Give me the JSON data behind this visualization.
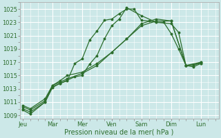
{
  "xlabel": "Pression niveau de la mer( hPa )",
  "background_color": "#cce8e8",
  "grid_color": "#ffffff",
  "line_color": "#2d6e2d",
  "ylim": [
    1008.5,
    1026.0
  ],
  "yticks": [
    1009,
    1011,
    1013,
    1015,
    1017,
    1019,
    1021,
    1023,
    1025
  ],
  "days": [
    "Jeu",
    "Mar",
    "Mer",
    "Ven",
    "Sam",
    "Dim",
    "Lun"
  ],
  "day_positions": [
    0,
    2,
    4,
    6,
    8,
    10,
    12
  ],
  "xlim": [
    -0.2,
    13.2
  ],
  "lines": [
    {
      "x": [
        0,
        0.5,
        1.5,
        2,
        2.5,
        3,
        3.5,
        4,
        4.5,
        5,
        5.5,
        6,
        6.5,
        7,
        7.5,
        8,
        8.5,
        9,
        9.5,
        10,
        10.5,
        11,
        11.5,
        12
      ],
      "y": [
        1009.8,
        1009.2,
        1011.0,
        1013.2,
        1013.8,
        1014.2,
        1016.8,
        1017.5,
        1020.3,
        1021.7,
        1023.3,
        1023.5,
        1024.3,
        1025.0,
        1025.0,
        1023.3,
        1023.2,
        1023.0,
        1023.0,
        1021.3,
        1019.0,
        1016.5,
        1016.5,
        1017.0
      ]
    },
    {
      "x": [
        0,
        0.5,
        1.5,
        2,
        2.5,
        3,
        3.5,
        4,
        4.5,
        5,
        5.5,
        6,
        6.5,
        7,
        8,
        9,
        10,
        10.5,
        11,
        11.5,
        12
      ],
      "y": [
        1010.0,
        1009.5,
        1011.0,
        1013.3,
        1013.8,
        1014.3,
        1014.8,
        1015.0,
        1016.7,
        1018.0,
        1020.5,
        1022.5,
        1023.5,
        1025.2,
        1024.0,
        1023.0,
        1022.8,
        1021.5,
        1016.5,
        1016.3,
        1016.8
      ]
    },
    {
      "x": [
        0,
        0.5,
        1.5,
        2,
        2.5,
        3,
        4,
        5,
        6,
        7,
        8,
        9,
        10,
        11,
        12
      ],
      "y": [
        1010.3,
        1009.8,
        1011.2,
        1013.5,
        1014.0,
        1014.5,
        1015.3,
        1016.5,
        1018.5,
        1020.5,
        1022.5,
        1023.2,
        1023.2,
        1016.5,
        1016.8
      ]
    },
    {
      "x": [
        0,
        0.5,
        1.5,
        2,
        2.5,
        3,
        4,
        5,
        6,
        7,
        8,
        9,
        10,
        11,
        12
      ],
      "y": [
        1010.5,
        1010.0,
        1011.5,
        1013.5,
        1014.2,
        1015.0,
        1015.5,
        1016.8,
        1018.5,
        1020.5,
        1022.8,
        1023.5,
        1023.2,
        1016.5,
        1017.0
      ]
    }
  ]
}
